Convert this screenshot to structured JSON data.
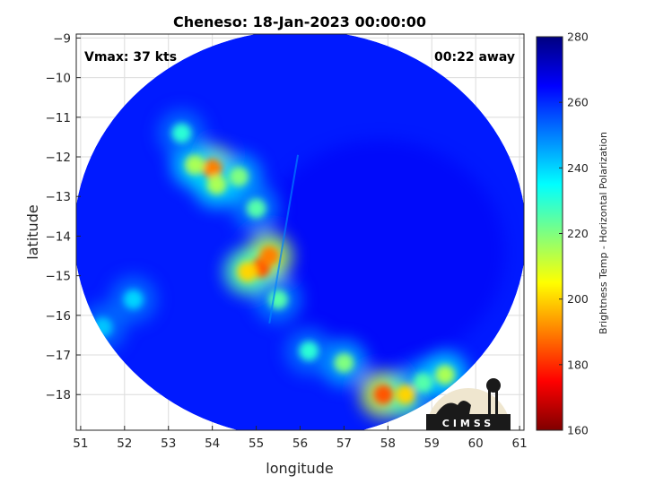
{
  "chart_data": {
    "type": "heatmap",
    "title": "Cheneso: 18-Jan-2023 00:00:00",
    "xlabel": "longitude",
    "ylabel": "latitude",
    "xlim": [
      50.9,
      61.1
    ],
    "ylim": [
      -18.9,
      -8.9
    ],
    "xticks": [
      51,
      52,
      53,
      54,
      55,
      56,
      57,
      58,
      59,
      60,
      61
    ],
    "yticks": [
      -9,
      -10,
      -11,
      -12,
      -13,
      -14,
      -15,
      -16,
      -17,
      -18
    ],
    "grid": true,
    "swath": {
      "center_lon": 56.0,
      "center_lat": -13.95,
      "radius_deg": 5.15
    },
    "features": [
      {
        "lon": 55.1,
        "lat": -14.8,
        "value": 185
      },
      {
        "lon": 55.3,
        "lat": -14.5,
        "value": 190
      },
      {
        "lon": 54.8,
        "lat": -14.9,
        "value": 200
      },
      {
        "lon": 54.0,
        "lat": -12.3,
        "value": 190
      },
      {
        "lon": 53.6,
        "lat": -12.2,
        "value": 215
      },
      {
        "lon": 54.6,
        "lat": -12.5,
        "value": 220
      },
      {
        "lon": 54.1,
        "lat": -12.7,
        "value": 215
      },
      {
        "lon": 55.0,
        "lat": -13.3,
        "value": 225
      },
      {
        "lon": 55.5,
        "lat": -15.6,
        "value": 225
      },
      {
        "lon": 53.3,
        "lat": -11.4,
        "value": 230
      },
      {
        "lon": 57.9,
        "lat": -18.0,
        "value": 185
      },
      {
        "lon": 58.4,
        "lat": -18.0,
        "value": 200
      },
      {
        "lon": 57.0,
        "lat": -17.2,
        "value": 220
      },
      {
        "lon": 58.8,
        "lat": -17.7,
        "value": 225
      },
      {
        "lon": 59.3,
        "lat": -17.5,
        "value": 215
      },
      {
        "lon": 56.2,
        "lat": -16.9,
        "value": 230
      },
      {
        "lon": 52.2,
        "lat": -15.6,
        "value": 240
      },
      {
        "lon": 51.5,
        "lat": -16.3,
        "value": 242
      }
    ],
    "background_value": 262,
    "colorbar": {
      "label": "Brightness Temp - Horizontal Polarization",
      "range": [
        160,
        280
      ],
      "ticks": [
        280,
        260,
        240,
        220,
        200,
        180,
        160
      ],
      "colormap": "jet"
    },
    "annotations": {
      "vmax": "Vmax: 37 kts",
      "away": "00:22 away"
    }
  },
  "logo": {
    "text": "CIMSS"
  }
}
